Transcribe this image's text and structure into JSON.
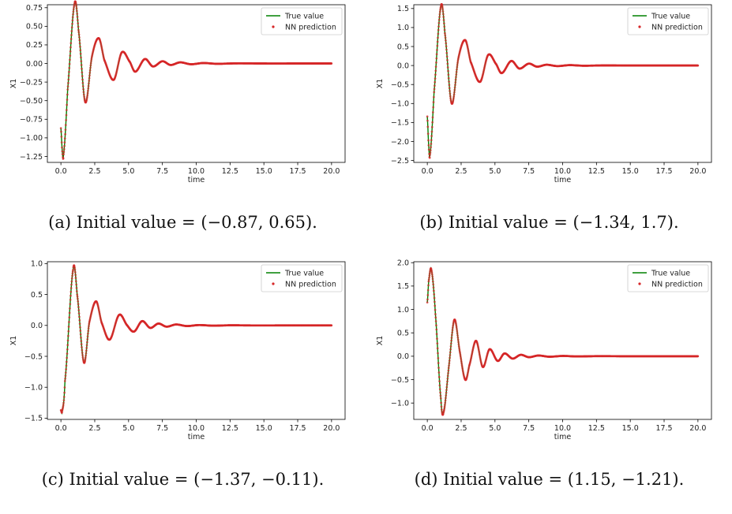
{
  "chart_data": [
    {
      "type": "line",
      "caption": "(a) Initial value = (−0.87, 0.65).",
      "xlabel": "time",
      "ylabel": "X1",
      "xlim": [
        -1.0,
        21.0
      ],
      "ylim": [
        -1.33,
        0.79
      ],
      "xticks": [
        "0.0",
        "2.5",
        "5.0",
        "7.5",
        "10.0",
        "12.5",
        "15.0",
        "17.5",
        "20.0"
      ],
      "yticks": [
        "0.75",
        "0.50",
        "0.25",
        "0.00",
        "−0.25",
        "−0.50",
        "−0.75",
        "−1.00",
        "−1.25"
      ],
      "legend": "top-right",
      "series": [
        {
          "name": "True value",
          "style": "line",
          "color": "#008000",
          "x": [
            0.0,
            0.1,
            0.2,
            0.5,
            1.0,
            1.3,
            1.8,
            2.3,
            2.8,
            3.2,
            3.9,
            4.5,
            5.1,
            5.5,
            6.2,
            6.8,
            7.5,
            8.1,
            8.8,
            9.6,
            10.5,
            11.5,
            13,
            15,
            17.5,
            20
          ],
          "y": [
            -0.87,
            -1.18,
            -1.22,
            -0.35,
            0.8,
            0.45,
            -0.52,
            0.1,
            0.34,
            0.05,
            -0.22,
            0.15,
            0.02,
            -0.11,
            0.06,
            -0.04,
            0.03,
            -0.02,
            0.015,
            -0.01,
            0.006,
            -0.004,
            0.002,
            0.0,
            0.0,
            0.0
          ]
        },
        {
          "name": "NN prediction",
          "style": "markers",
          "color": "#d62728",
          "x": [
            0.0,
            0.1,
            0.2,
            0.5,
            1.0,
            1.3,
            1.8,
            2.3,
            2.8,
            3.2,
            3.9,
            4.5,
            5.1,
            5.5,
            6.2,
            6.8,
            7.5,
            8.1,
            8.8,
            9.6,
            10.5,
            11.5,
            13,
            15,
            17.5,
            20
          ],
          "y": [
            -0.87,
            -1.18,
            -1.22,
            -0.35,
            0.8,
            0.45,
            -0.52,
            0.1,
            0.34,
            0.05,
            -0.22,
            0.15,
            0.02,
            -0.11,
            0.06,
            -0.04,
            0.03,
            -0.02,
            0.015,
            -0.01,
            0.006,
            -0.004,
            0.002,
            0.0,
            0.0,
            0.0
          ]
        }
      ]
    },
    {
      "type": "line",
      "caption": "(b) Initial value = (−1.34, 1.7).",
      "xlabel": "time",
      "ylabel": "X1",
      "xlim": [
        -1.0,
        21.0
      ],
      "ylim": [
        -2.55,
        1.6
      ],
      "xticks": [
        "0.0",
        "2.5",
        "5.0",
        "7.5",
        "10.0",
        "12.5",
        "15.0",
        "17.5",
        "20.0"
      ],
      "yticks": [
        "1.5",
        "1.0",
        "0.5",
        "0.0",
        "−0.5",
        "−1.0",
        "−1.5",
        "−2.0",
        "−2.5"
      ],
      "legend": "top-right",
      "series": [
        {
          "name": "True value",
          "style": "line",
          "color": "#008000",
          "x": [
            0.0,
            0.1,
            0.2,
            0.5,
            1.0,
            1.3,
            1.8,
            2.3,
            2.8,
            3.2,
            3.9,
            4.5,
            5.1,
            5.5,
            6.2,
            6.8,
            7.5,
            8.1,
            8.8,
            9.6,
            10.5,
            11.5,
            13,
            15,
            17.5,
            20
          ],
          "y": [
            -1.34,
            -2.1,
            -2.35,
            -0.7,
            1.55,
            0.85,
            -1.0,
            0.2,
            0.67,
            0.1,
            -0.43,
            0.28,
            0.03,
            -0.2,
            0.12,
            -0.08,
            0.05,
            -0.03,
            0.02,
            -0.015,
            0.01,
            -0.005,
            0.002,
            0.0,
            0.0,
            0.0
          ]
        },
        {
          "name": "NN prediction",
          "style": "markers",
          "color": "#d62728",
          "x": [
            0.0,
            0.1,
            0.2,
            0.5,
            1.0,
            1.3,
            1.8,
            2.3,
            2.8,
            3.2,
            3.9,
            4.5,
            5.1,
            5.5,
            6.2,
            6.8,
            7.5,
            8.1,
            8.8,
            9.6,
            10.5,
            11.5,
            13,
            15,
            17.5,
            20
          ],
          "y": [
            -1.34,
            -2.1,
            -2.35,
            -0.7,
            1.55,
            0.85,
            -1.0,
            0.2,
            0.67,
            0.1,
            -0.43,
            0.28,
            0.03,
            -0.2,
            0.12,
            -0.08,
            0.05,
            -0.03,
            0.02,
            -0.015,
            0.01,
            -0.005,
            0.002,
            0.0,
            0.0,
            0.0
          ]
        }
      ]
    },
    {
      "type": "line",
      "caption": "(c) Initial value = (−1.37, −0.11).",
      "xlabel": "time",
      "ylabel": "X1",
      "xlim": [
        -1.0,
        21.0
      ],
      "ylim": [
        -1.52,
        1.03
      ],
      "xticks": [
        "0.0",
        "2.5",
        "5.0",
        "7.5",
        "10.0",
        "12.5",
        "15.0",
        "17.5",
        "20.0"
      ],
      "yticks": [
        "1.0",
        "0.5",
        "0.0",
        "−0.5",
        "−1.0",
        "−1.5"
      ],
      "legend": "top-right",
      "series": [
        {
          "name": "True value",
          "style": "line",
          "color": "#008000",
          "x": [
            0.0,
            0.1,
            0.3,
            0.9,
            1.2,
            1.7,
            2.1,
            2.6,
            3.0,
            3.6,
            4.3,
            4.9,
            5.4,
            6.0,
            6.6,
            7.2,
            7.8,
            8.5,
            9.3,
            10.2,
            11.2,
            12.5,
            14,
            16,
            18,
            20
          ],
          "y": [
            -1.37,
            -1.38,
            -0.9,
            0.9,
            0.5,
            -0.6,
            0.05,
            0.39,
            0.05,
            -0.23,
            0.17,
            0.0,
            -0.1,
            0.07,
            -0.04,
            0.03,
            -0.02,
            0.015,
            -0.01,
            0.006,
            -0.004,
            0.002,
            0.0,
            0.0,
            0.0,
            0.0
          ]
        },
        {
          "name": "NN prediction",
          "style": "markers",
          "color": "#d62728",
          "x": [
            0.0,
            0.1,
            0.3,
            0.9,
            1.2,
            1.7,
            2.1,
            2.6,
            3.0,
            3.6,
            4.3,
            4.9,
            5.4,
            6.0,
            6.6,
            7.2,
            7.8,
            8.5,
            9.3,
            10.2,
            11.2,
            12.5,
            14,
            16,
            18,
            20
          ],
          "y": [
            -1.37,
            -1.38,
            -0.9,
            0.9,
            0.5,
            -0.6,
            0.05,
            0.39,
            0.05,
            -0.23,
            0.17,
            0.0,
            -0.1,
            0.07,
            -0.04,
            0.03,
            -0.02,
            0.015,
            -0.01,
            0.006,
            -0.004,
            0.002,
            0.0,
            0.0,
            0.0,
            0.0
          ]
        }
      ]
    },
    {
      "type": "line",
      "caption": "(d) Initial value = (1.15, −1.21).",
      "xlabel": "time",
      "ylabel": "X1",
      "xlim": [
        -1.0,
        21.0
      ],
      "ylim": [
        -1.35,
        2.02
      ],
      "xticks": [
        "0.0",
        "2.5",
        "5.0",
        "7.5",
        "10.0",
        "12.5",
        "15.0",
        "17.5",
        "20.0"
      ],
      "yticks": [
        "2.0",
        "1.5",
        "1.0",
        "0.5",
        "0.0",
        "−0.5",
        "−1.0"
      ],
      "legend": "top-right",
      "series": [
        {
          "name": "True value",
          "style": "line",
          "color": "#008000",
          "x": [
            0.0,
            0.1,
            0.3,
            0.6,
            1.0,
            1.2,
            1.6,
            2.0,
            2.4,
            2.8,
            3.1,
            3.6,
            4.1,
            4.6,
            5.2,
            5.7,
            6.3,
            6.9,
            7.5,
            8.2,
            9.0,
            10.0,
            11.0,
            12.5,
            15,
            17.5,
            20
          ],
          "y": [
            1.15,
            1.6,
            1.85,
            0.9,
            -0.9,
            -1.2,
            -0.2,
            0.78,
            0.1,
            -0.5,
            -0.2,
            0.33,
            -0.23,
            0.15,
            -0.1,
            0.06,
            -0.05,
            0.03,
            -0.02,
            0.015,
            -0.01,
            0.006,
            -0.004,
            0.002,
            0.0,
            0.0,
            0.0
          ]
        },
        {
          "name": "NN prediction",
          "style": "markers",
          "color": "#d62728",
          "x": [
            0.0,
            0.1,
            0.3,
            0.6,
            1.0,
            1.2,
            1.6,
            2.0,
            2.4,
            2.8,
            3.1,
            3.6,
            4.1,
            4.6,
            5.2,
            5.7,
            6.3,
            6.9,
            7.5,
            8.2,
            9.0,
            10.0,
            11.0,
            12.5,
            15,
            17.5,
            20
          ],
          "y": [
            1.15,
            1.6,
            1.85,
            0.9,
            -0.9,
            -1.2,
            -0.2,
            0.78,
            0.1,
            -0.5,
            -0.2,
            0.33,
            -0.23,
            0.15,
            -0.1,
            0.06,
            -0.05,
            0.03,
            -0.02,
            0.015,
            -0.01,
            0.006,
            -0.004,
            0.002,
            0.0,
            0.0,
            0.0
          ]
        }
      ]
    }
  ]
}
